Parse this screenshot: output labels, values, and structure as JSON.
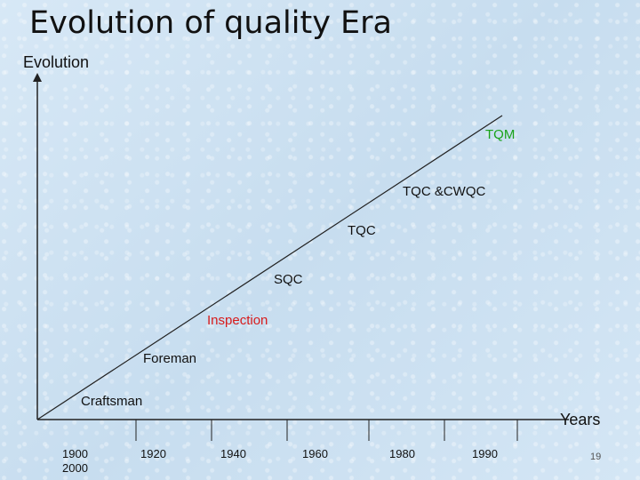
{
  "title": "Evolution of quality Era",
  "y_axis_label": "Evolution",
  "x_axis_label": "Years",
  "eras": {
    "craftsman": "Craftsman",
    "foreman": "Foreman",
    "inspection": "Inspection",
    "sqc": "SQC",
    "tqc": "TQC",
    "tqc_cwqc": "TQC &CWQC",
    "tqm": "TQM"
  },
  "ticks": {
    "t1_line1": "1900",
    "t1_line2": "2000",
    "t2": "1920",
    "t3": "1940",
    "t4": "1960",
    "t5": "1980",
    "t6": "1990"
  },
  "page_number": "19",
  "colors": {
    "inspection": "#d81b1b",
    "tqm": "#1aa31a",
    "default_text": "#111111"
  }
}
